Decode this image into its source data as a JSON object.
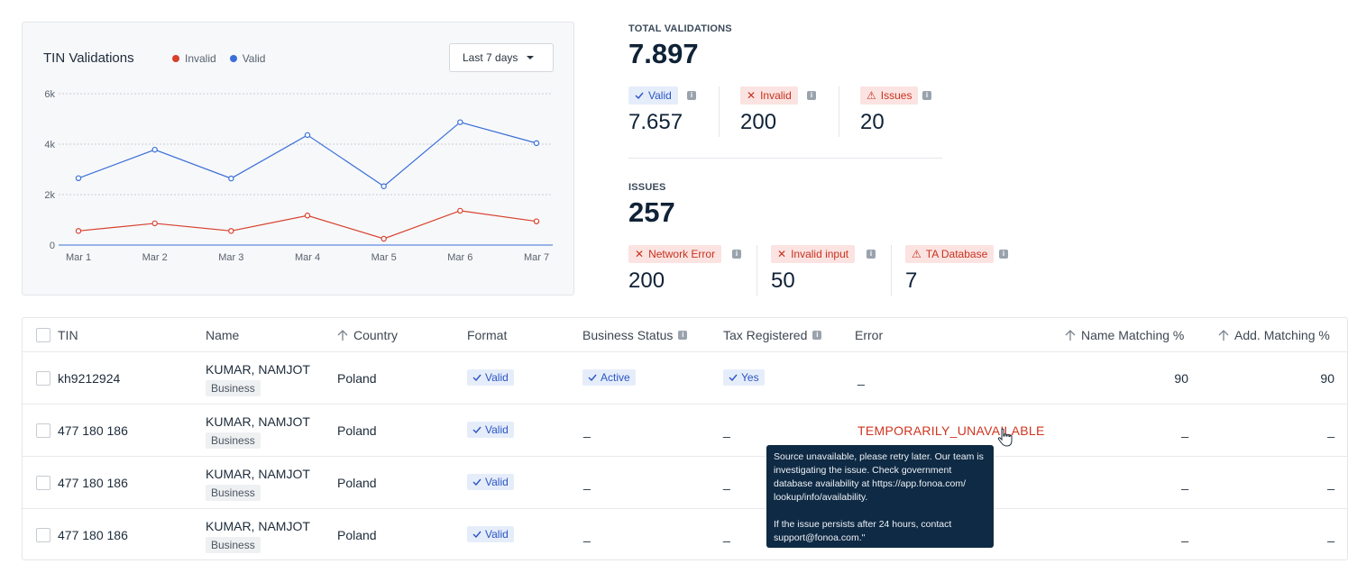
{
  "chart_card": {
    "title": "TIN Validations",
    "legend": [
      {
        "label": "Invalid",
        "color": "#d7412e"
      },
      {
        "label": "Valid",
        "color": "#3a6fd8"
      }
    ],
    "range_select": "Last 7 days"
  },
  "chart_data": {
    "type": "line",
    "title": "TIN Validations",
    "categories": [
      "Mar 1",
      "Mar 2",
      "Mar 3",
      "Mar 4",
      "Mar 5",
      "Mar 6",
      "Mar 7"
    ],
    "series": [
      {
        "name": "Valid",
        "color": "#3a6fd8",
        "values": [
          2650,
          3780,
          2640,
          4360,
          2330,
          4870,
          4040
        ]
      },
      {
        "name": "Invalid",
        "color": "#d7412e",
        "values": [
          560,
          860,
          560,
          1170,
          250,
          1360,
          940
        ]
      }
    ],
    "y_ticks": [
      "0",
      "2k",
      "4k",
      "6k"
    ],
    "ylim": [
      0,
      6000
    ],
    "grid": true,
    "legend_position": "top"
  },
  "totals": {
    "label": "TOTAL VALIDATIONS",
    "value": "7.897",
    "chips": [
      {
        "label": "Valid",
        "value": "7.657",
        "icon": "check-icon"
      },
      {
        "label": "Invalid",
        "value": "200",
        "icon": "x-icon"
      },
      {
        "label": "Issues",
        "value": "20",
        "icon": "warning-icon"
      }
    ]
  },
  "issues": {
    "label": "ISSUES",
    "value": "257",
    "chips": [
      {
        "label": "Network Error",
        "value": "200",
        "icon": "x-icon"
      },
      {
        "label": "Invalid input",
        "value": "50",
        "icon": "x-icon"
      },
      {
        "label": "TA Database",
        "value": "7",
        "icon": "warning-icon"
      }
    ]
  },
  "table": {
    "headers": {
      "tin": "TIN",
      "name": "Name",
      "country": "Country",
      "format": "Format",
      "business_status": "Business Status",
      "tax_registered": "Tax Registered",
      "error": "Error",
      "name_matching": "Name Matching %",
      "add_matching": "Add. Matching %"
    },
    "rows": [
      {
        "tin": "kh9212924",
        "name": "KUMAR, NAMJOT",
        "type": "Business",
        "country": "Poland",
        "format": "Valid",
        "business_status": "Active",
        "tax_registered": "Yes",
        "error": "_",
        "name_matching": "90",
        "add_matching": "90"
      },
      {
        "tin": "477 180 186",
        "name": "KUMAR, NAMJOT",
        "type": "Business",
        "country": "Poland",
        "format": "Valid",
        "business_status": "_",
        "tax_registered": "_",
        "error": "TEMPORARILY_UNAVAILABLE",
        "name_matching": "_",
        "add_matching": "_"
      },
      {
        "tin": "477 180 186",
        "name": "KUMAR, NAMJOT",
        "type": "Business",
        "country": "Poland",
        "format": "Valid",
        "business_status": "_",
        "tax_registered": "_",
        "error": "",
        "name_matching": "_",
        "add_matching": "_"
      },
      {
        "tin": "477 180 186",
        "name": "KUMAR, NAMJOT",
        "type": "Business",
        "country": "Poland",
        "format": "Valid",
        "business_status": "_",
        "tax_registered": "_",
        "error": "",
        "name_matching": "_",
        "add_matching": "_"
      }
    ]
  },
  "tooltip": {
    "line1": "Source unavailable, please retry later. Our team is investigating the issue. Check government database availability at https://app.fonoa.com/ lookup/info/availability.",
    "line2": "If the issue persists after 24 hours, contact support@fonoa.com.\""
  }
}
